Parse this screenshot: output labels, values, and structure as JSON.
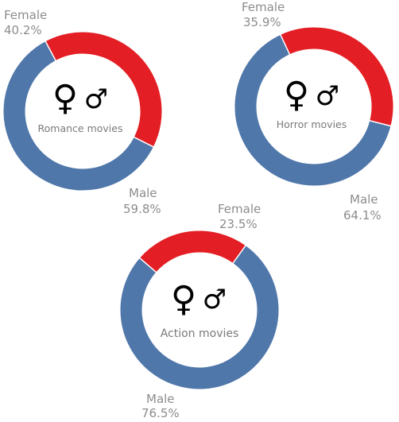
{
  "colors": {
    "female": "#e31e24",
    "male": "#4f77aa"
  },
  "chart_data": [
    {
      "type": "pie",
      "variant": "donut",
      "title": "Romance movies",
      "series": [
        {
          "name": "Female",
          "value": 40.2,
          "label": "40.2%"
        },
        {
          "name": "Male",
          "value": 59.8,
          "label": "59.8%"
        }
      ],
      "icons": [
        "female-symbol-icon",
        "male-symbol-icon"
      ]
    },
    {
      "type": "pie",
      "variant": "donut",
      "title": "Horror movies",
      "series": [
        {
          "name": "Female",
          "value": 35.9,
          "label": "35.9%"
        },
        {
          "name": "Male",
          "value": 64.1,
          "label": "64.1%"
        }
      ],
      "icons": [
        "female-symbol-icon",
        "male-symbol-icon"
      ]
    },
    {
      "type": "pie",
      "variant": "donut",
      "title": "Action movies",
      "series": [
        {
          "name": "Female",
          "value": 23.5,
          "label": "23.5%"
        },
        {
          "name": "Male",
          "value": 76.5,
          "label": "76.5%"
        }
      ],
      "icons": [
        "female-symbol-icon",
        "male-symbol-icon"
      ]
    }
  ]
}
